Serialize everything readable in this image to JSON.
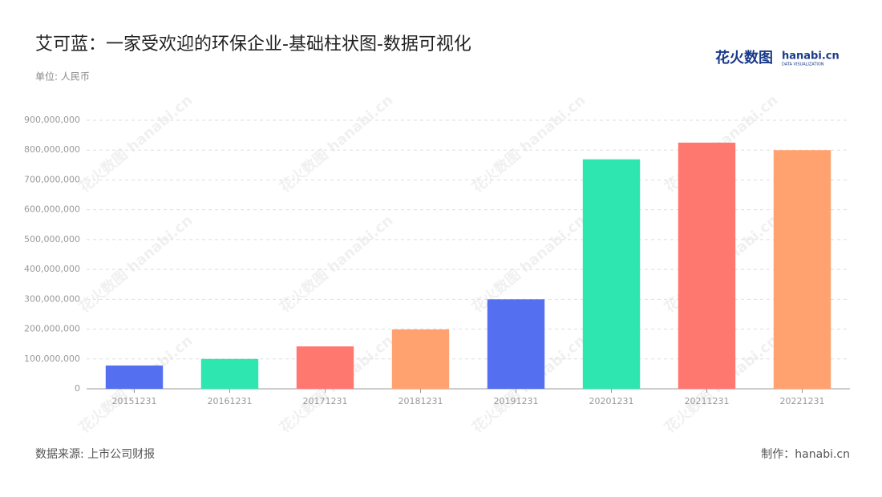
{
  "chart_data": {
    "type": "bar",
    "title": "艾可蓝：一家受欢迎的环保企业-基础柱状图-数据可视化",
    "subtitle": "单位: 人民币",
    "source": "数据来源: 上市公司财报",
    "credit": "制作：hanabi.cn",
    "logo": "花火数图",
    "logo_sub": "hanabi.cn",
    "logo_tagline": "DATA VISUALIZATION",
    "watermark": "花火数图 hanabi.cn",
    "categories": [
      "20151231",
      "20161231",
      "20171231",
      "20181231",
      "20191231",
      "20201231",
      "20211231",
      "20221231"
    ],
    "values": [
      78000000,
      100000000,
      142000000,
      199000000,
      300000000,
      769000000,
      825000000,
      800000000
    ],
    "colors": [
      "#5470f0",
      "#2ee6b0",
      "#ff7870",
      "#ffa270",
      "#5470f0",
      "#2ee6b0",
      "#ff7870",
      "#ffa270"
    ],
    "ylim": [
      0,
      900000000
    ],
    "yticks": [
      0,
      {
        "value": 100000000,
        "label": "100,000,000"
      },
      {
        "value": 200000000,
        "label": "200,000,000"
      },
      {
        "value": 300000000,
        "label": "300,000,000"
      },
      {
        "value": 400000000,
        "label": "400,000,000"
      },
      {
        "value": 500000000,
        "label": "500,000,000"
      },
      {
        "value": 600000000,
        "label": "600,000,000"
      },
      {
        "value": 700000000,
        "label": "700,000,000"
      },
      {
        "value": 800000000,
        "label": "800,000,000"
      },
      {
        "value": 900000000,
        "label": "900,000,000"
      }
    ],
    "grid": true
  }
}
